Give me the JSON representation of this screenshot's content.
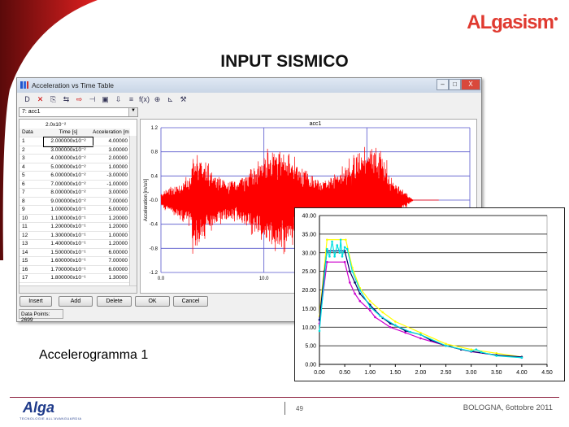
{
  "slide": {
    "title": "INPUT SISMICO",
    "brand": "ALgasism",
    "caption": "Accelerogramma 1",
    "page": "49",
    "footer_date": "BOLOGNA, 6ottobre 2011",
    "footer_logo": "Alga",
    "footer_tagline": "TECNOLOGIE ALL'AVANGUARDIA",
    "accent": "#c8102e"
  },
  "window": {
    "title": "Acceleration vs Time Table",
    "buttons": {
      "minimize": "–",
      "maximize": "□",
      "close": "X"
    },
    "toolbar_icons": [
      "new-icon",
      "delete-icon",
      "preview-icon",
      "copy-icon",
      "paste-icon",
      "marker-icon",
      "clear-icon",
      "import-icon",
      "sort-icon",
      "function-icon",
      "settings-icon",
      "chart-icon",
      "tool-icon"
    ],
    "toolbar_labels": [
      "D",
      "✕",
      "⎘",
      "⇆",
      "⇨",
      "⊣",
      "▣",
      "⇩",
      "≡",
      "f(x)",
      "⊕",
      "⊾",
      "⚒"
    ],
    "combo": "7: acc1",
    "edit_value": "2.0x10⁻²",
    "table": {
      "headers": [
        "Data",
        "Time [s]",
        "Acceleration [m"
      ],
      "rows": [
        [
          "1",
          "2.000000x10⁻²",
          "4.00000"
        ],
        [
          "2",
          "3.000000x10⁻²",
          "3.00000"
        ],
        [
          "3",
          "4.000000x10⁻²",
          "2.00000"
        ],
        [
          "4",
          "5.000000x10⁻²",
          "1.00000"
        ],
        [
          "5",
          "6.000000x10⁻²",
          "-3.00000"
        ],
        [
          "6",
          "7.000000x10⁻²",
          "-1.00000"
        ],
        [
          "7",
          "8.000000x10⁻²",
          "3.00000"
        ],
        [
          "8",
          "9.000000x10⁻²",
          "7.00000"
        ],
        [
          "9",
          "1.000000x10⁻¹",
          "5.00000"
        ],
        [
          "10",
          "1.100000x10⁻¹",
          "1.20000"
        ],
        [
          "11",
          "1.200000x10⁻¹",
          "1.20000"
        ],
        [
          "12",
          "1.300000x10⁻¹",
          "1.00000"
        ],
        [
          "13",
          "1.400000x10⁻¹",
          "1.20000"
        ],
        [
          "14",
          "1.500000x10⁻¹",
          "6.00000"
        ],
        [
          "15",
          "1.600000x10⁻¹",
          "7.00000"
        ],
        [
          "16",
          "1.700000x10⁻¹",
          "6.00000"
        ],
        [
          "17",
          "1.800000x10⁻¹",
          "1.30000"
        ]
      ]
    },
    "actions": {
      "insert": "Insert",
      "add": "Add",
      "delete": "Delete",
      "ok": "OK",
      "cancel": "Cancel"
    },
    "status": "Data Points: 2699"
  },
  "chart_data": [
    {
      "type": "line",
      "title": "acc1",
      "xlabel": "",
      "ylabel": "Acceleration [m/s/s]",
      "xlim": [
        0,
        30
      ],
      "ylim": [
        -1.2,
        1.2
      ],
      "xticks": [
        "0.0",
        "10.0"
      ],
      "yticks": [
        "1.2",
        "0.8",
        "0.4",
        "-0.0",
        "-0.4",
        "-0.8",
        "-1.2"
      ],
      "grid": true,
      "color": "#ff0000",
      "points_count": 2699
    },
    {
      "type": "line",
      "xlim": [
        0,
        4.5
      ],
      "ylim": [
        0,
        40
      ],
      "grid": true,
      "xticks": [
        "0.00",
        "0.50",
        "1.00",
        "1.50",
        "2.00",
        "2.50",
        "3.00",
        "3.50",
        "4.00",
        "4.50"
      ],
      "yticks": [
        "0.00",
        "5.00",
        "10.00",
        "15.00",
        "20.00",
        "25.00",
        "30.00",
        "35.00",
        "40.00"
      ],
      "series": [
        {
          "color": "#ffff00",
          "x": [
            0,
            0.15,
            0.52,
            0.65,
            0.8,
            1.0,
            1.25,
            1.5,
            2.0,
            2.5,
            3.0,
            3.5,
            4.0
          ],
          "y": [
            13,
            33.5,
            33.5,
            26,
            20.5,
            17,
            14,
            11.5,
            8.5,
            5.5,
            4,
            3,
            2
          ]
        },
        {
          "color": "#cc00cc",
          "x": [
            0,
            0.15,
            0.5,
            0.6,
            0.7,
            0.8,
            1.0,
            1.1,
            1.4,
            1.7,
            2.0,
            2.5,
            3.0,
            3.5,
            4.0
          ],
          "y": [
            11,
            27.5,
            27.5,
            22,
            19,
            17,
            14.5,
            12.7,
            10,
            8.5,
            7,
            5,
            3.4,
            2.5,
            1.8
          ]
        },
        {
          "color": "#000066",
          "x": [
            0,
            0.1,
            0.15,
            0.5,
            0.6,
            0.7,
            0.8,
            1.0,
            1.1,
            1.25,
            1.4,
            1.5,
            1.7,
            2.0,
            2.2,
            2.5,
            2.8,
            3.0,
            3.5,
            4.0
          ],
          "y": [
            12,
            25,
            30.5,
            30.5,
            25,
            22,
            19,
            16,
            14.5,
            12.5,
            11,
            10.5,
            9,
            8,
            6.5,
            5,
            4,
            3.5,
            2.5,
            2
          ]
        },
        {
          "color": "#00e0e0",
          "x": [
            0,
            0.15,
            0.2,
            0.25,
            0.3,
            0.35,
            0.4,
            0.42,
            0.45,
            0.5,
            0.55,
            0.65,
            0.8,
            1.0,
            1.2,
            1.5,
            1.8,
            2.0,
            2.5,
            3.0,
            3.1,
            3.2,
            3.5,
            4.0
          ],
          "y": [
            9,
            31,
            29,
            33,
            29,
            32,
            30,
            33.5,
            29,
            31.5,
            31,
            25,
            20,
            15.5,
            13,
            10.5,
            8.7,
            8,
            5,
            3.5,
            4,
            3.3,
            2.3,
            1.8
          ]
        }
      ]
    }
  ]
}
